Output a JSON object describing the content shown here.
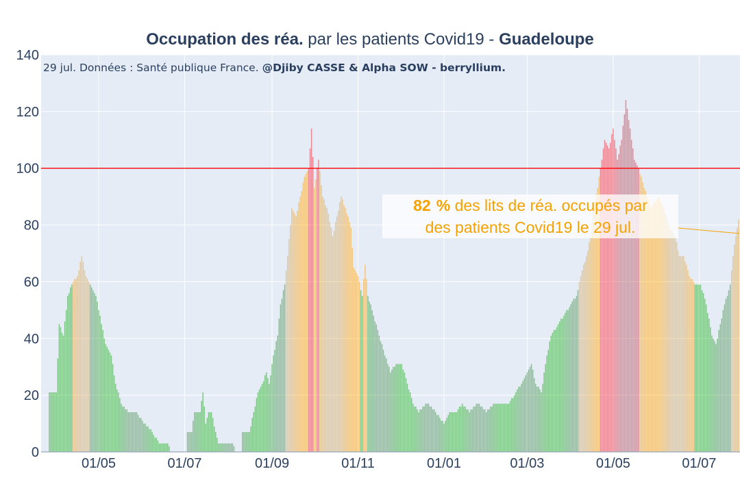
{
  "title": {
    "bold_part": "Occupation des réa.",
    "middle_part": " par les patients Covid19 - ",
    "region": "Guadeloupe"
  },
  "subtitle": {
    "text": "29 jul. Données : Santé publique France. ",
    "authors": "@Djiby CASSE & Alpha SOW - berryllium."
  },
  "annotation": {
    "value": "82",
    "pct": "%",
    "line1_rest": " des lits de réa. occupés par",
    "line2": "des patients Covid19 le 29 jul."
  },
  "colors": {
    "background": "#e5ecf6",
    "green": "#2ca02c",
    "orange": "#f5a623",
    "red": "#e8333f",
    "threshold": "#ff0000",
    "annotation": "#f5a200",
    "text": "#2a3f5f"
  },
  "chart_data": {
    "type": "bar",
    "x_start": "2020-03-27",
    "x_end": "2021-07-29",
    "x_tick_labels": [
      "01/05",
      "01/07",
      "01/09",
      "01/11",
      "01/01",
      "01/03",
      "01/05",
      "01/07"
    ],
    "x_tick_dates": [
      "2020-05-01",
      "2020-07-01",
      "2020-09-01",
      "2020-11-01",
      "2021-01-01",
      "2021-03-01",
      "2021-05-01",
      "2021-07-01"
    ],
    "ylim": [
      0,
      140
    ],
    "y_ticks": [
      0,
      20,
      40,
      60,
      80,
      100,
      120,
      140
    ],
    "threshold": 100,
    "color_rule": "green < 60 ≤ orange < 100 ≤ red",
    "keypoints": [
      [
        "2020-03-27",
        21
      ],
      [
        "2020-04-01",
        21
      ],
      [
        "2020-04-03",
        45
      ],
      [
        "2020-04-06",
        41
      ],
      [
        "2020-04-09",
        55
      ],
      [
        "2020-04-12",
        59
      ],
      [
        "2020-04-16",
        62
      ],
      [
        "2020-04-19",
        69
      ],
      [
        "2020-04-22",
        62
      ],
      [
        "2020-04-25",
        59
      ],
      [
        "2020-04-29",
        55
      ],
      [
        "2020-05-03",
        45
      ],
      [
        "2020-05-06",
        38
      ],
      [
        "2020-05-10",
        34
      ],
      [
        "2020-05-13",
        24
      ],
      [
        "2020-05-17",
        17
      ],
      [
        "2020-05-22",
        14
      ],
      [
        "2020-05-28",
        14
      ],
      [
        "2020-06-02",
        10
      ],
      [
        "2020-06-08",
        7
      ],
      [
        "2020-06-13",
        3
      ],
      [
        "2020-06-19",
        3
      ],
      [
        "2020-06-21",
        0
      ],
      [
        "2020-07-02",
        0
      ],
      [
        "2020-07-03",
        7
      ],
      [
        "2020-07-06",
        7
      ],
      [
        "2020-07-08",
        14
      ],
      [
        "2020-07-12",
        14
      ],
      [
        "2020-07-14",
        21
      ],
      [
        "2020-07-16",
        10
      ],
      [
        "2020-07-18",
        14
      ],
      [
        "2020-07-20",
        14
      ],
      [
        "2020-07-23",
        7
      ],
      [
        "2020-07-25",
        3
      ],
      [
        "2020-08-04",
        3
      ],
      [
        "2020-08-06",
        0
      ],
      [
        "2020-08-10",
        0
      ],
      [
        "2020-08-11",
        7
      ],
      [
        "2020-08-16",
        7
      ],
      [
        "2020-08-19",
        14
      ],
      [
        "2020-08-22",
        21
      ],
      [
        "2020-08-25",
        24
      ],
      [
        "2020-08-28",
        28
      ],
      [
        "2020-08-30",
        24
      ],
      [
        "2020-09-02",
        34
      ],
      [
        "2020-09-05",
        41
      ],
      [
        "2020-09-07",
        52
      ],
      [
        "2020-09-10",
        59
      ],
      [
        "2020-09-12",
        69
      ],
      [
        "2020-09-15",
        86
      ],
      [
        "2020-09-18",
        83
      ],
      [
        "2020-09-21",
        90
      ],
      [
        "2020-09-24",
        97
      ],
      [
        "2020-09-27",
        100
      ],
      [
        "2020-09-29",
        114
      ],
      [
        "2020-10-01",
        93
      ],
      [
        "2020-10-04",
        103
      ],
      [
        "2020-10-07",
        90
      ],
      [
        "2020-10-10",
        86
      ],
      [
        "2020-10-14",
        76
      ],
      [
        "2020-10-17",
        83
      ],
      [
        "2020-10-20",
        90
      ],
      [
        "2020-10-23",
        86
      ],
      [
        "2020-10-27",
        79
      ],
      [
        "2020-10-29",
        65
      ],
      [
        "2020-11-01",
        62
      ],
      [
        "2020-11-04",
        55
      ],
      [
        "2020-11-06",
        66
      ],
      [
        "2020-11-08",
        55
      ],
      [
        "2020-11-12",
        48
      ],
      [
        "2020-11-16",
        41
      ],
      [
        "2020-11-20",
        34
      ],
      [
        "2020-11-24",
        28
      ],
      [
        "2020-11-28",
        31
      ],
      [
        "2020-12-02",
        31
      ],
      [
        "2020-12-06",
        24
      ],
      [
        "2020-12-10",
        17
      ],
      [
        "2020-12-14",
        14
      ],
      [
        "2020-12-20",
        17
      ],
      [
        "2020-12-26",
        14
      ],
      [
        "2021-01-01",
        10
      ],
      [
        "2021-01-05",
        14
      ],
      [
        "2021-01-10",
        14
      ],
      [
        "2021-01-14",
        17
      ],
      [
        "2021-01-19",
        14
      ],
      [
        "2021-01-25",
        17
      ],
      [
        "2021-01-31",
        14
      ],
      [
        "2021-02-05",
        17
      ],
      [
        "2021-02-11",
        17
      ],
      [
        "2021-02-16",
        17
      ],
      [
        "2021-02-21",
        21
      ],
      [
        "2021-02-25",
        24
      ],
      [
        "2021-03-01",
        28
      ],
      [
        "2021-03-04",
        31
      ],
      [
        "2021-03-07",
        24
      ],
      [
        "2021-03-11",
        21
      ],
      [
        "2021-03-14",
        31
      ],
      [
        "2021-03-18",
        41
      ],
      [
        "2021-03-23",
        45
      ],
      [
        "2021-03-27",
        48
      ],
      [
        "2021-04-01",
        52
      ],
      [
        "2021-04-05",
        55
      ],
      [
        "2021-04-08",
        62
      ],
      [
        "2021-04-12",
        69
      ],
      [
        "2021-04-15",
        76
      ],
      [
        "2021-04-17",
        86
      ],
      [
        "2021-04-20",
        93
      ],
      [
        "2021-04-22",
        100
      ],
      [
        "2021-04-25",
        110
      ],
      [
        "2021-04-28",
        107
      ],
      [
        "2021-05-01",
        114
      ],
      [
        "2021-05-04",
        103
      ],
      [
        "2021-05-07",
        110
      ],
      [
        "2021-05-10",
        124
      ],
      [
        "2021-05-13",
        114
      ],
      [
        "2021-05-16",
        103
      ],
      [
        "2021-05-19",
        100
      ],
      [
        "2021-05-23",
        93
      ],
      [
        "2021-05-28",
        86
      ],
      [
        "2021-06-02",
        90
      ],
      [
        "2021-06-06",
        86
      ],
      [
        "2021-06-10",
        79
      ],
      [
        "2021-06-14",
        76
      ],
      [
        "2021-06-17",
        69
      ],
      [
        "2021-06-20",
        69
      ],
      [
        "2021-06-24",
        62
      ],
      [
        "2021-06-28",
        59
      ],
      [
        "2021-07-02",
        59
      ],
      [
        "2021-07-06",
        52
      ],
      [
        "2021-07-10",
        41
      ],
      [
        "2021-07-13",
        38
      ],
      [
        "2021-07-16",
        45
      ],
      [
        "2021-07-19",
        52
      ],
      [
        "2021-07-21",
        55
      ],
      [
        "2021-07-23",
        59
      ],
      [
        "2021-07-25",
        69
      ],
      [
        "2021-07-27",
        76
      ],
      [
        "2021-07-29",
        82
      ]
    ]
  }
}
